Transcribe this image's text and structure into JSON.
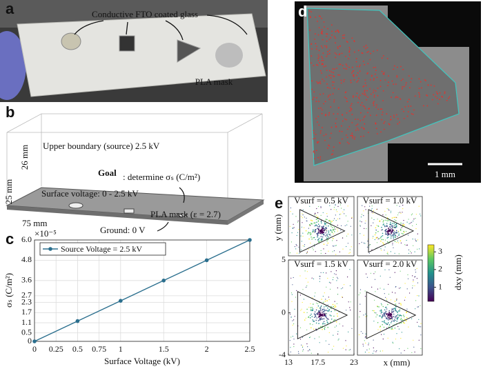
{
  "panel_labels": [
    "a",
    "b",
    "c",
    "d",
    "e"
  ],
  "panel_a": {
    "labels": [
      "Conductive FTO coated glass",
      "PLA mask"
    ]
  },
  "panel_b": {
    "texts": [
      "Upper boundary (source) 2.5 kV",
      "26 mm",
      "Goal",
      ": determine σₛ (C/m²)",
      "25 mm",
      "Surface voltage: 0 - 2.5 kV",
      "75 mm",
      "PLA mask (ε = 2.7)",
      "Ground: 0 V"
    ]
  },
  "chart_data": {
    "type": "line",
    "x": [
      0,
      0.5,
      1,
      1.5,
      2,
      2.5
    ],
    "series": [
      {
        "name": "Source Voltage = 2.5 kV",
        "color": "#2b6f8e",
        "values": [
          0,
          1.2,
          2.4,
          3.6,
          4.8,
          6
        ]
      }
    ],
    "xlabel": "Surface Voltage (kV)",
    "ylabel": "σₛ (C/m²)",
    "y_multiplier": "×10⁻⁵",
    "xlim": [
      0,
      2.5
    ],
    "ylim": [
      0,
      6
    ],
    "xticks": [
      0,
      0.25,
      0.5,
      0.75,
      1,
      1.5,
      2,
      2.5
    ],
    "yticks": [
      0,
      0.5,
      1.1,
      1.7,
      2.3,
      2.7,
      3.6,
      4.8,
      {
        "value": 6,
        "label": "6.0"
      }
    ],
    "grid": true,
    "legend": "upper left"
  },
  "panel_d": {
    "scale_bar": "1 mm"
  },
  "panel_e": {
    "titles": [
      "Vsurf = 0.5 kV",
      "Vsurf = 1.0 kV",
      "Vsurf = 1.5 kV",
      "Vsurf = 2.0 kV"
    ],
    "xlabel": "x (mm)",
    "ylabel": "y (mm)",
    "colorbar_label": "dxy (mm)",
    "xlim": [
      13,
      23
    ],
    "ylim": [
      -4,
      5
    ],
    "xticks": [
      13,
      17.5,
      23
    ],
    "yticks": [
      5,
      0,
      -4
    ],
    "colorbar_lim": [
      0.2,
      3.4
    ],
    "colorbar_ticks": [
      1,
      2,
      3
    ]
  }
}
